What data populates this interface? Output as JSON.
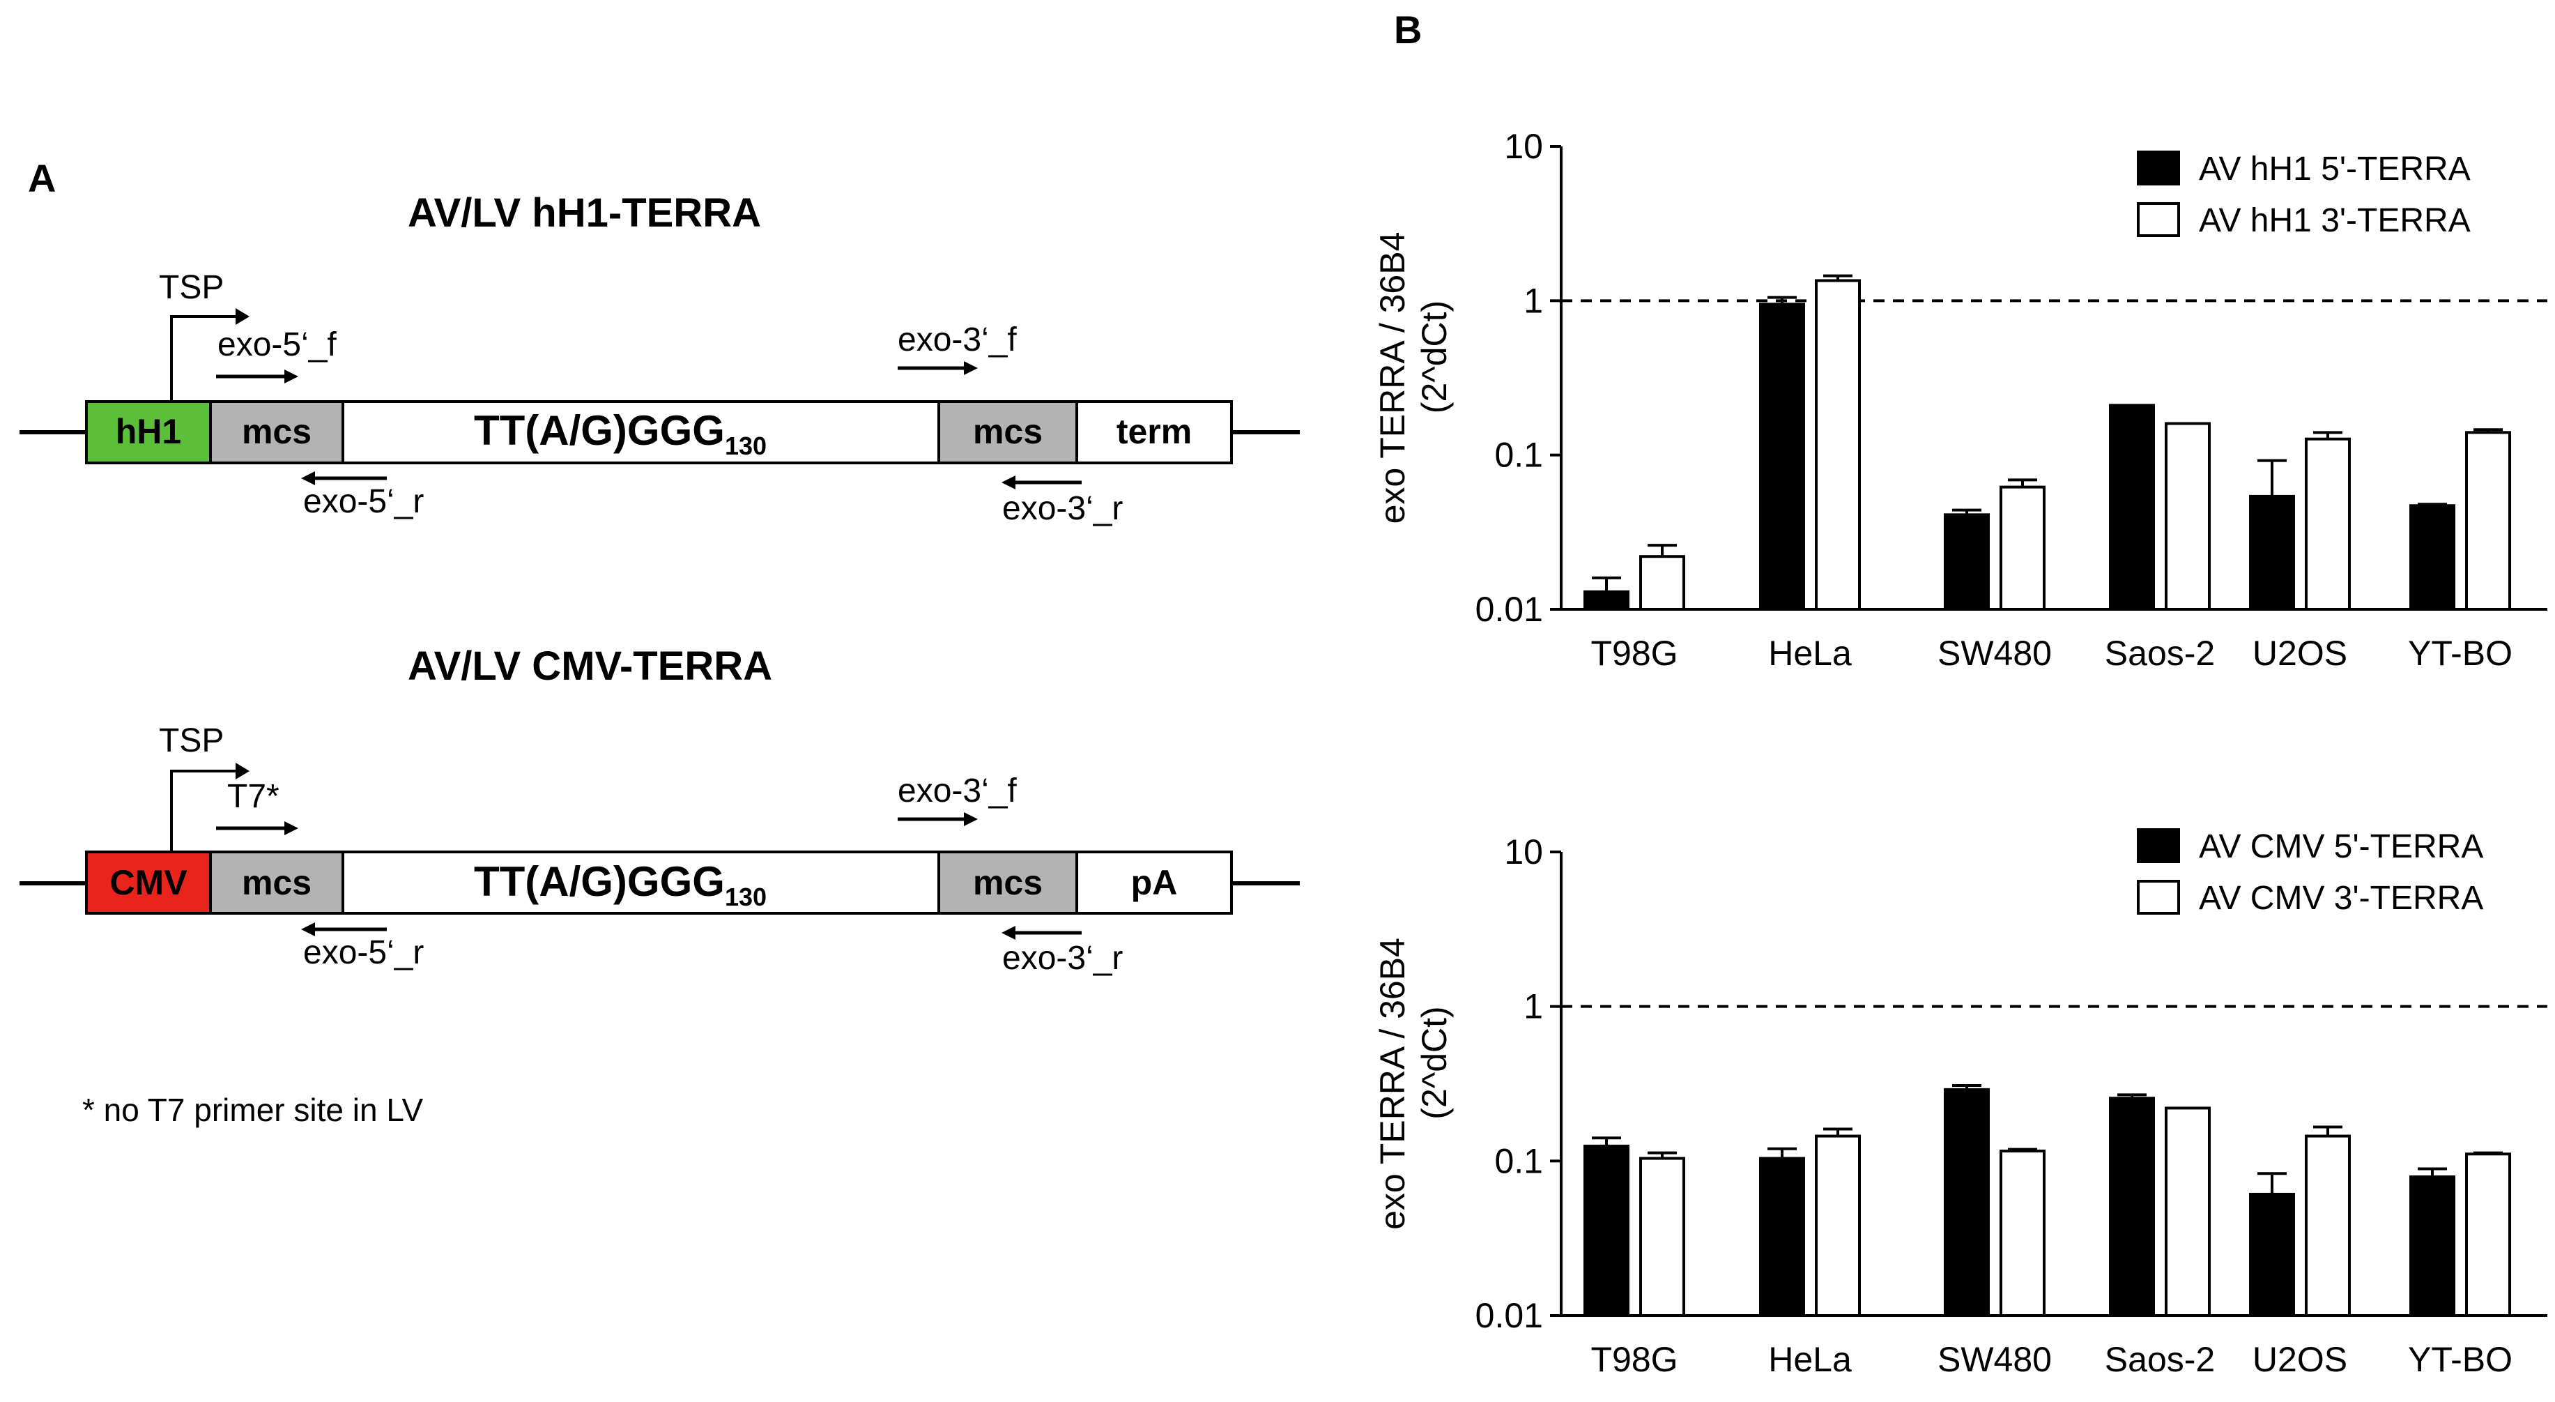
{
  "panel_a": {
    "letter": "A",
    "construct1": {
      "title": "AV/LV hH1-TERRA",
      "tsp": "TSP",
      "primer_f5": "exo-5‘_f",
      "primer_r5": "exo-5‘_r",
      "primer_f3": "exo-3‘_f",
      "primer_r3": "exo-3‘_r",
      "promoter": "hH1",
      "mcs1": "mcs",
      "insert": "TT(A/G)GGG",
      "insert_sub": "130",
      "mcs2": "mcs",
      "end": "term",
      "promoter_color": "#5bbf3a"
    },
    "construct2": {
      "title": "AV/LV CMV-TERRA",
      "tsp": "TSP",
      "primer_f5": "T7*",
      "primer_r5": "exo-5‘_r",
      "primer_f3": "exo-3‘_f",
      "primer_r3": "exo-3‘_r",
      "promoter": "CMV",
      "mcs1": "mcs",
      "insert": "TT(A/G)GGG",
      "insert_sub": "130",
      "mcs2": "mcs",
      "end": "pA",
      "promoter_color": "#e8241c"
    },
    "footnote": "* no T7 primer site in LV",
    "mcs_color": "#b3b3b3"
  },
  "panel_b": {
    "letter": "B"
  },
  "chart_data": [
    {
      "type": "bar",
      "yscale": "log",
      "ylabel": "exo TERRA  / 36B4",
      "ylabel2": "(2^dCt)",
      "yticks": [
        "10",
        "1",
        "0.1",
        "0.01"
      ],
      "ylim": [
        0.01,
        10
      ],
      "reference_line": 1,
      "categories": [
        "T98G",
        "HeLa",
        "SW480",
        "Saos-2",
        "U2OS",
        "YT-BO"
      ],
      "series": [
        {
          "name": "AV hH1 5'-TERRA",
          "fill": "#000000",
          "values": [
            0.013,
            0.95,
            0.041,
            0.21,
            0.054,
            0.047
          ],
          "errors": [
            0.003,
            0.1,
            0.003,
            0.0,
            0.038,
            0.001
          ]
        },
        {
          "name": "AV hH1 3'-TERRA",
          "fill": "#ffffff",
          "values": [
            0.022,
            1.35,
            0.062,
            0.16,
            0.127,
            0.14
          ],
          "errors": [
            0.004,
            0.1,
            0.007,
            0.0,
            0.013,
            0.006
          ]
        }
      ]
    },
    {
      "type": "bar",
      "yscale": "log",
      "ylabel": "exo TERRA  / 36B4",
      "ylabel2": "(2^dCt)",
      "yticks": [
        "10",
        "1",
        "0.1",
        "0.01"
      ],
      "ylim": [
        0.01,
        10
      ],
      "reference_line": 1,
      "categories": [
        "T98G",
        "HeLa",
        "SW480",
        "Saos-2",
        "U2OS",
        "YT-BO"
      ],
      "series": [
        {
          "name": "AV CMV 5'-TERRA",
          "fill": "#000000",
          "values": [
            0.125,
            0.104,
            0.29,
            0.255,
            0.061,
            0.079
          ],
          "errors": [
            0.016,
            0.016,
            0.018,
            0.013,
            0.022,
            0.01
          ]
        },
        {
          "name": "AV CMV 3'-TERRA",
          "fill": "#ffffff",
          "values": [
            0.104,
            0.145,
            0.116,
            0.22,
            0.145,
            0.111
          ],
          "errors": [
            0.009,
            0.016,
            0.003,
            0.0,
            0.021,
            0.002
          ]
        }
      ]
    }
  ]
}
